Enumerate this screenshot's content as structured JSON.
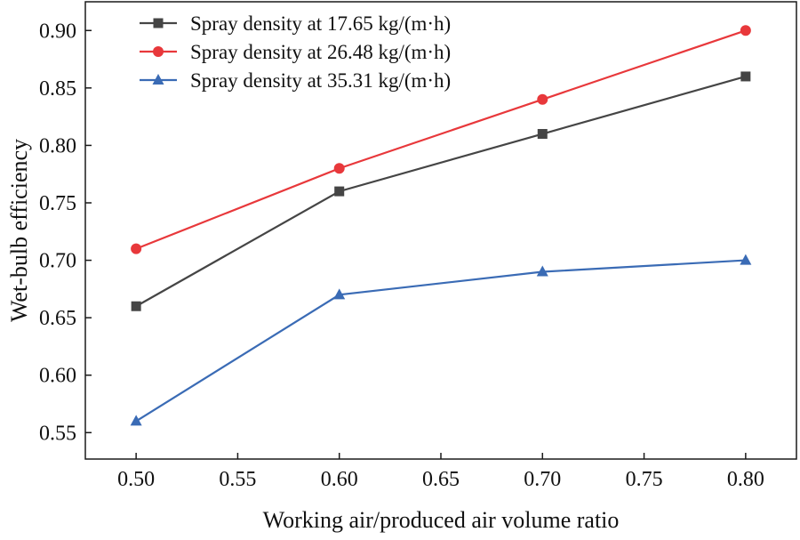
{
  "chart_data": {
    "type": "line",
    "xlabel": "Working air/produced air volume ratio",
    "ylabel": "Wet-bulb efficiency",
    "xlim": [
      0.475,
      0.825
    ],
    "ylim": [
      0.527,
      0.925
    ],
    "xticks": [
      "0.50",
      "0.55",
      "0.60",
      "0.65",
      "0.70",
      "0.75",
      "0.80"
    ],
    "yticks": [
      "0.55",
      "0.60",
      "0.65",
      "0.70",
      "0.75",
      "0.80",
      "0.85",
      "0.90"
    ],
    "x": [
      0.5,
      0.6,
      0.7,
      0.8
    ],
    "legend_position": "top-left",
    "series": [
      {
        "name": "Spray density at 17.65 kg/(m·h)",
        "color": "#454545",
        "marker": "square",
        "values": [
          0.66,
          0.76,
          0.81,
          0.86
        ]
      },
      {
        "name": "Spray density at 26.48 kg/(m·h)",
        "color": "#e8383b",
        "marker": "circle",
        "values": [
          0.71,
          0.78,
          0.84,
          0.9
        ]
      },
      {
        "name": "Spray density at 35.31 kg/(m·h)",
        "color": "#3a6bb5",
        "marker": "triangle",
        "values": [
          0.56,
          0.67,
          0.69,
          0.7
        ]
      }
    ]
  }
}
